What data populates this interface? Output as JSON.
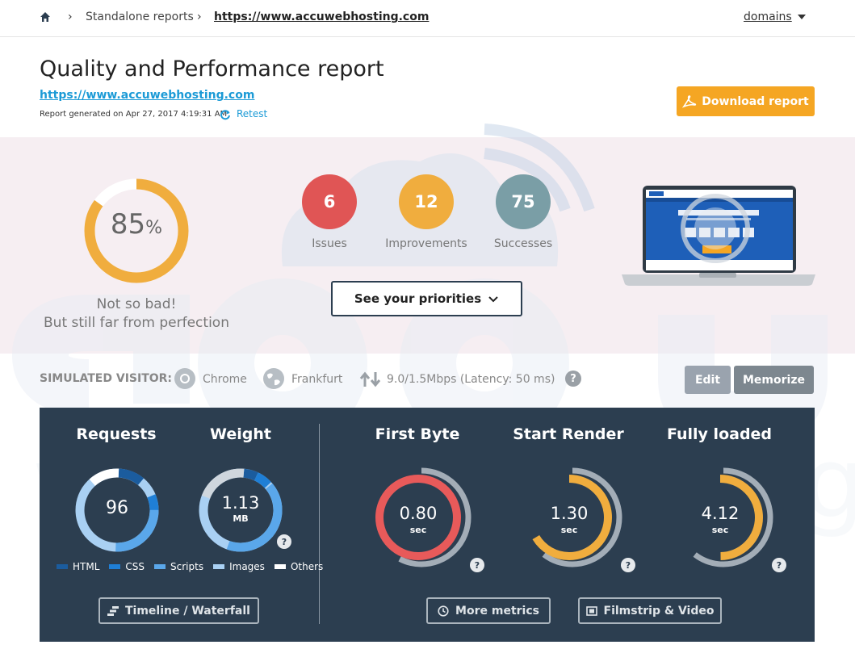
{
  "breadcrumb": {
    "section": "Standalone reports",
    "url": "https://www.accuwebhosting.com",
    "domains_label": "domains"
  },
  "header": {
    "title": "Quality and Performance report",
    "url": "https://www.accuwebhosting.com",
    "generated": "Report generated on Apr 27, 2017 4:19:31 AM",
    "retest_label": "Retest",
    "download_label": "Download report"
  },
  "score": {
    "value": "85",
    "unit": "%",
    "fraction": 0.85,
    "verdict_line1": "Not so bad!",
    "verdict_line2": "But still far from perfection"
  },
  "counts": {
    "issues": {
      "value": "6",
      "label": "Issues",
      "color": "#e05555"
    },
    "improvements": {
      "value": "12",
      "label": "Improvements",
      "color": "#f0ad3e"
    },
    "successes": {
      "value": "75",
      "label": "Successes",
      "color": "#7a9ea6"
    }
  },
  "priorities_label": "See your priorities",
  "visitor": {
    "label": "SIMULATED VISITOR:",
    "browser": "Chrome",
    "location": "Frankfurt",
    "connection": "9.0/1.5Mbps (Latency: 50 ms)",
    "help": "?",
    "edit_label": "Edit",
    "memorize_label": "Memorize"
  },
  "metrics": {
    "requests": {
      "title": "Requests",
      "value": "96"
    },
    "weight": {
      "title": "Weight",
      "value": "1.13",
      "unit": "MB"
    },
    "first_byte": {
      "title": "First Byte",
      "value": "0.80",
      "unit": "sec",
      "color": "#e85a5a"
    },
    "start_render": {
      "title": "Start Render",
      "value": "1.30",
      "unit": "sec",
      "color": "#f0ad3e"
    },
    "fully_loaded": {
      "title": "Fully loaded",
      "value": "4.12",
      "unit": "sec",
      "color": "#f0ad3e"
    },
    "help": "?"
  },
  "legend": [
    {
      "label": "HTML",
      "color": "#1b5c9e"
    },
    {
      "label": "CSS",
      "color": "#1f7fd6"
    },
    {
      "label": "Scripts",
      "color": "#5aa7ea"
    },
    {
      "label": "Images",
      "color": "#a9d0f3"
    },
    {
      "label": "Others",
      "color": "#ffffff"
    }
  ],
  "actions": {
    "timeline_label": "Timeline / Waterfall",
    "more_metrics_label": "More metrics",
    "filmstrip_label": "Filmstrip & Video"
  },
  "icons": {
    "home": "home-icon",
    "retest": "refresh-icon",
    "download": "pdf-icon",
    "browser": "chrome-icon",
    "location": "globe-icon",
    "connection": "up-down-arrows-icon",
    "timeline": "bars-icon",
    "more_metrics": "clock-icon",
    "filmstrip": "film-icon"
  }
}
